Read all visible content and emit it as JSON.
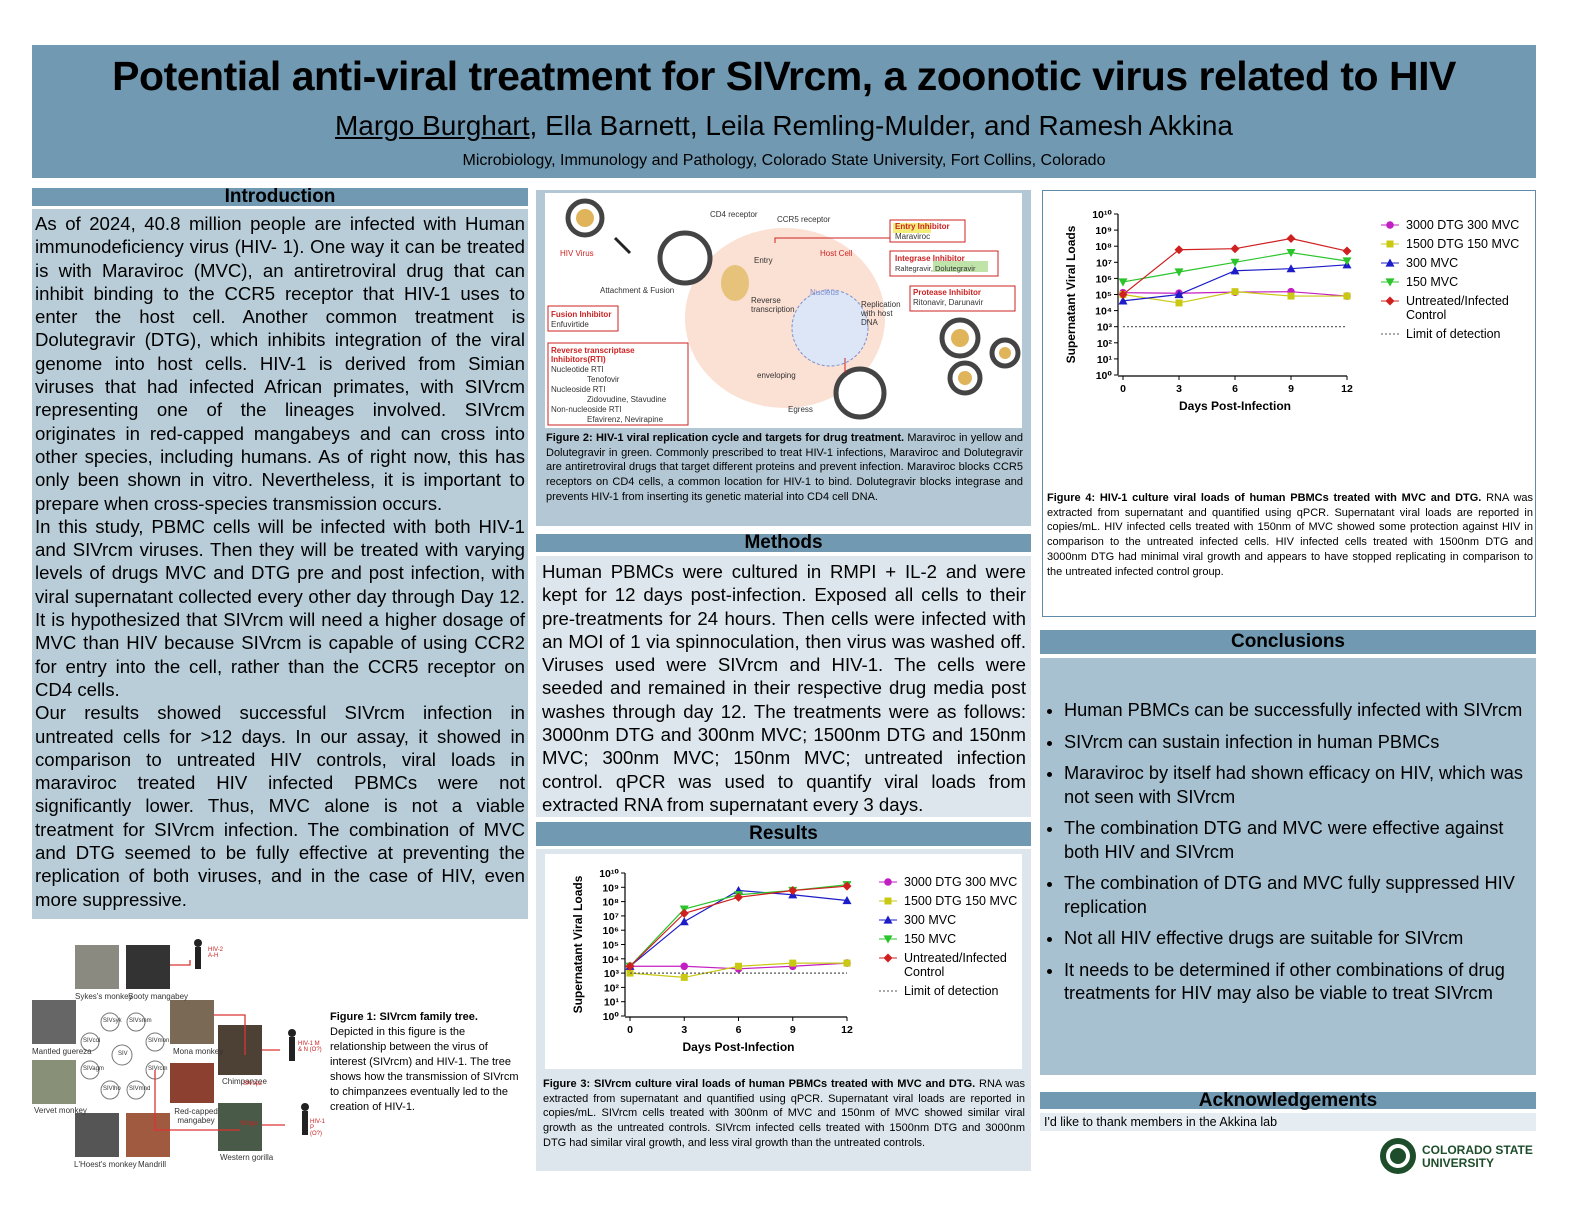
{
  "header": {
    "title": "Potential anti-viral treatment for SIVrcm, a zoonotic virus related to HIV",
    "presenting_author": "Margo Burghart",
    "other_authors": ", Ella Barnett, Leila Remling-Mulder, and Ramesh Akkina",
    "affiliation": "Microbiology, Immunology and Pathology, Colorado State University, Fort Collins, Colorado"
  },
  "introduction": {
    "heading": "Introduction",
    "paragraphs": [
      "As of 2024, 40.8 million people are infected with Human immunodeficiency virus (HIV- 1). One way it can be treated is with Maraviroc (MVC), an antiretroviral drug that can inhibit binding to the CCR5 receptor that HIV-1 uses to enter the host cell. Another common treatment is Dolutegravir (DTG), which inhibits integration of the viral genome into host cells. HIV-1 is derived from Simian viruses that had infected African primates, with SIVrcm representing one of the lineages involved. SIVrcm originates in red-capped mangabeys and can cross into other species, including humans. As of right now, this has only been shown in vitro. Nevertheless, it is important to prepare when cross-species transmission occurs.",
      "In this study, PBMC cells will be infected with both HIV-1 and SIVrcm viruses. Then they will be treated with varying levels of drugs MVC  and DTG pre and post infection, with viral supernatant collected every other day through Day 12. It is hypothesized that SIVrcm will need a higher dosage of MVC than HIV because SIVrcm is capable of using CCR2 for entry into the cell, rather than the CCR5 receptor on CD4 cells.",
      "Our results showed successful SIVrcm infection in untreated cells for >12 days. In our assay, it showed in comparison to untreated HIV controls, viral loads in maraviroc treated HIV infected PBMCs were not significantly lower. Thus, MVC alone is not a viable treatment for SIVrcm infection. The combination of MVC and DTG seemed to be fully effective at preventing the replication of both viruses, and in the case of HIV, even more suppressive."
    ]
  },
  "figure1": {
    "caption_title": "Figure 1: SIVrcm family tree.",
    "caption_text": "Depicted in this figure is the relationship between the virus of interest (SIVrcm) and HIV-1. The tree shows how the transmission of SIVrcm to chimpanzees eventually led to the creation of HIV-1.",
    "labels": [
      "Sykes's monkey",
      "Sooty mangabey",
      "Mantled guereza",
      "Mona monkey",
      "Chimpanzee",
      "Vervet monkey",
      "Red-capped mangabey",
      "L'Hoest's monkey",
      "Mandrill",
      "Western gorilla"
    ],
    "nodes": [
      "SIVsyk",
      "SIVsmm",
      "SIVcol",
      "SIVmon",
      "SIV",
      "SIVagm",
      "SIVrcm",
      "SIVlho",
      "SIVmnd",
      "SIVcpz",
      "SIVgor"
    ],
    "outcomes": [
      "HIV-2 A-H",
      "HIV-1 M & N (O?)",
      "HIV-1 P (O?)"
    ]
  },
  "figure2": {
    "caption_title": "Figure 2: HIV-1 viral replication cycle and targets for drug treatment.",
    "caption_text": " Maraviroc in yellow and Dolutegravir in green. Commonly prescribed to treat HIV-1 infections, Maraviroc and Dolutegravir are antiretroviral drugs that target different proteins  and prevent infection.  Maraviroc blocks CCR5 receptors on CD4 cells, a common location for HIV-1 to bind. Dolutegravir blocks integrase and prevents HIV-1 from inserting its genetic material into CD4 cell DNA.",
    "labels": [
      "HIV Virus",
      "CD4 receptor",
      "CCR5 receptor",
      "Entry Inhibitor",
      "Maraviroc",
      "Entry",
      "Host Cell",
      "Integrase Inhibitor",
      "Raltegravir, Dolutegravir",
      "Attachment & Fusion",
      "Reverse transcription",
      "Nucleus",
      "Replication with host DNA",
      "Protease Inhibitor",
      "Ritonavir, Darunavir",
      "Fusion Inhibitor",
      "Enfuvirtide",
      "Reverse transcriptase Inhibitors(RTI)",
      "Nucleotide RTI",
      "Tenofovir",
      "Nucleoside RTI",
      "Zidovudine, Stavudine",
      "Non-nucleoside RTI",
      "Efavirenz, Nevirapine",
      "enveloping",
      "Egress"
    ]
  },
  "methods": {
    "heading": "Methods",
    "text": "Human PBMCs were cultured in RMPI + IL-2 and were kept for 12 days post-infection. Exposed all cells to their pre-treatments for 24 hours. Then cells were infected with an MOI of 1 via spinnoculation, then virus was washed off. Viruses used were SIVrcm and HIV-1. The cells were seeded and remained in their respective drug media post washes through day 12. The treatments were as follows: 3000nm DTG and 300nm MVC; 1500nm DTG and 150nm MVC; 300nm MVC; 150nm MVC; untreated infection control. qPCR was used to quantify viral loads from extracted RNA from supernatant every 3 days."
  },
  "results": {
    "heading": "Results"
  },
  "figure3": {
    "caption_title": "Figure 3: SIVrcm culture viral loads of human PBMCs treated with MVC and DTG.",
    "caption_text": " RNA was extracted from supernatant and quantified using qPCR. Supernatant viral loads are reported in copies/mL. SIVrcm cells treated with 300nm of MVC and 150nm of MVC showed similar viral  growth as the untreated controls. SIVrcm infected cells treated with 1500nm DTG and 3000nm DTG had similar viral growth, and less viral growth than the untreated controls.",
    "chart": {
      "type": "line",
      "y_scale": "log",
      "x_label": "Days Post-Infection",
      "y_label": "Supernatant Viral Loads",
      "x": [
        0,
        3,
        6,
        9,
        12
      ],
      "xlim": [
        0,
        12
      ],
      "xticks": [
        0,
        3,
        6,
        9,
        12
      ],
      "ylim": [
        1,
        10000000000
      ],
      "yticks": [
        {
          "value": 1,
          "label": "10⁰"
        },
        {
          "value": 10,
          "label": "10¹"
        },
        {
          "value": 100,
          "label": "10²"
        },
        {
          "value": 1000,
          "label": "10³"
        },
        {
          "value": 10000,
          "label": "10⁴"
        },
        {
          "value": 100000,
          "label": "10⁵"
        },
        {
          "value": 1000000,
          "label": "10⁶"
        },
        {
          "value": 10000000,
          "label": "10⁷"
        },
        {
          "value": 100000000,
          "label": "10⁸"
        },
        {
          "value": 1000000000,
          "label": "10⁹"
        },
        {
          "value": 10000000000,
          "label": "10¹⁰"
        }
      ],
      "series": [
        {
          "name": "3000 DTG 300 MVC",
          "color": "#c21fc2",
          "marker": "circle",
          "values": [
            3000,
            3000,
            2000,
            3000,
            5000
          ]
        },
        {
          "name": "1500 DTG 150 MVC",
          "color": "#c9c914",
          "marker": "square",
          "values": [
            1000,
            500,
            3000,
            5000,
            5000
          ]
        },
        {
          "name": "300 MVC",
          "color": "#1c1cc8",
          "marker": "triangle",
          "values": [
            3000,
            4000000,
            600000000,
            300000000,
            120000000
          ]
        },
        {
          "name": "150 MVC",
          "color": "#2bc42b",
          "marker": "triangle-down",
          "values": [
            3000,
            30000000,
            300000000,
            600000000,
            1500000000
          ]
        },
        {
          "name": "Untreated/Infected Control",
          "color": "#d01f1f",
          "marker": "diamond",
          "values": [
            3000,
            15000000,
            200000000,
            600000000,
            1200000000
          ]
        },
        {
          "name": "Limit of detection",
          "color": "#555555",
          "line_style": "dotted",
          "values": [
            1000,
            1000,
            1000,
            1000,
            1000
          ]
        }
      ]
    }
  },
  "figure4": {
    "caption_title": "Figure 4: HIV-1 culture viral loads of human PBMCs treated with MVC and DTG.",
    "caption_text": " RNA was extracted from supernatant and quantified using qPCR. Supernatant viral loads are reported in copies/mL. HIV infected cells treated with 150nm of MVC showed some protection against HIV in comparison to the untreated infected cells. HIV infected cells treated with 1500nm DTG and 3000nm DTG had minimal viral growth and appears to have stopped replicating in comparison to the untreated infected control group.",
    "chart": {
      "type": "line",
      "y_scale": "log",
      "x_label": "Days Post-Infection",
      "y_label": "Supernatant Viral Loads",
      "x": [
        0,
        3,
        6,
        9,
        12
      ],
      "xlim": [
        0,
        12
      ],
      "xticks": [
        0,
        3,
        6,
        9,
        12
      ],
      "ylim": [
        1,
        10000000000
      ],
      "yticks": [
        {
          "value": 1,
          "label": "10⁰"
        },
        {
          "value": 10,
          "label": "10¹"
        },
        {
          "value": 100,
          "label": "10²"
        },
        {
          "value": 1000,
          "label": "10³"
        },
        {
          "value": 10000,
          "label": "10⁴"
        },
        {
          "value": 100000,
          "label": "10⁵"
        },
        {
          "value": 1000000,
          "label": "10⁶"
        },
        {
          "value": 10000000,
          "label": "10⁷"
        },
        {
          "value": 100000000,
          "label": "10⁸"
        },
        {
          "value": 1000000000,
          "label": "10⁹"
        },
        {
          "value": 10000000000,
          "label": "10¹⁰"
        }
      ],
      "series": [
        {
          "name": "3000 DTG 300 MVC",
          "color": "#c21fc2",
          "marker": "circle",
          "values": [
            130000,
            120000,
            140000,
            150000,
            80000
          ]
        },
        {
          "name": "1500 DTG 150 MVC",
          "color": "#c9c914",
          "marker": "square",
          "values": [
            100000,
            30000,
            150000,
            80000,
            80000
          ]
        },
        {
          "name": "300 MVC",
          "color": "#1c1cc8",
          "marker": "triangle",
          "values": [
            40000,
            100000,
            3000000,
            4000000,
            7000000
          ]
        },
        {
          "name": "150 MVC",
          "color": "#2bc42b",
          "marker": "triangle-down",
          "values": [
            600000,
            2500000,
            10000000,
            40000000,
            12000000
          ]
        },
        {
          "name": "Untreated/Infected Control",
          "color": "#d01f1f",
          "marker": "diamond",
          "values": [
            100000,
            60000000,
            70000000,
            300000000,
            50000000
          ]
        },
        {
          "name": "Limit of detection",
          "color": "#555555",
          "line_style": "dotted",
          "values": [
            1000,
            1000,
            1000,
            1000,
            1000
          ]
        }
      ]
    }
  },
  "conclusions": {
    "heading": "Conclusions",
    "items": [
      "Human PBMCs can be successfully infected with SIVrcm",
      "SIVrcm can sustain infection in human PBMCs",
      "Maraviroc by itself had shown efficacy on HIV, which was not seen with SIVrcm",
      "The combination DTG and MVC were effective against both HIV and SIVrcm",
      "The combination of DTG and MVC fully suppressed HIV replication",
      "Not all HIV effective drugs are suitable for SIVrcm",
      "It needs to be determined if other combinations of drug treatments for HIV may also be viable to treat SIVrcm"
    ]
  },
  "acknowledgements": {
    "heading": "Acknowledgements",
    "text": "I'd like to thank members in the Akkina lab"
  },
  "logo": {
    "line1": "COLORADO STATE",
    "line2": "UNIVERSITY"
  }
}
